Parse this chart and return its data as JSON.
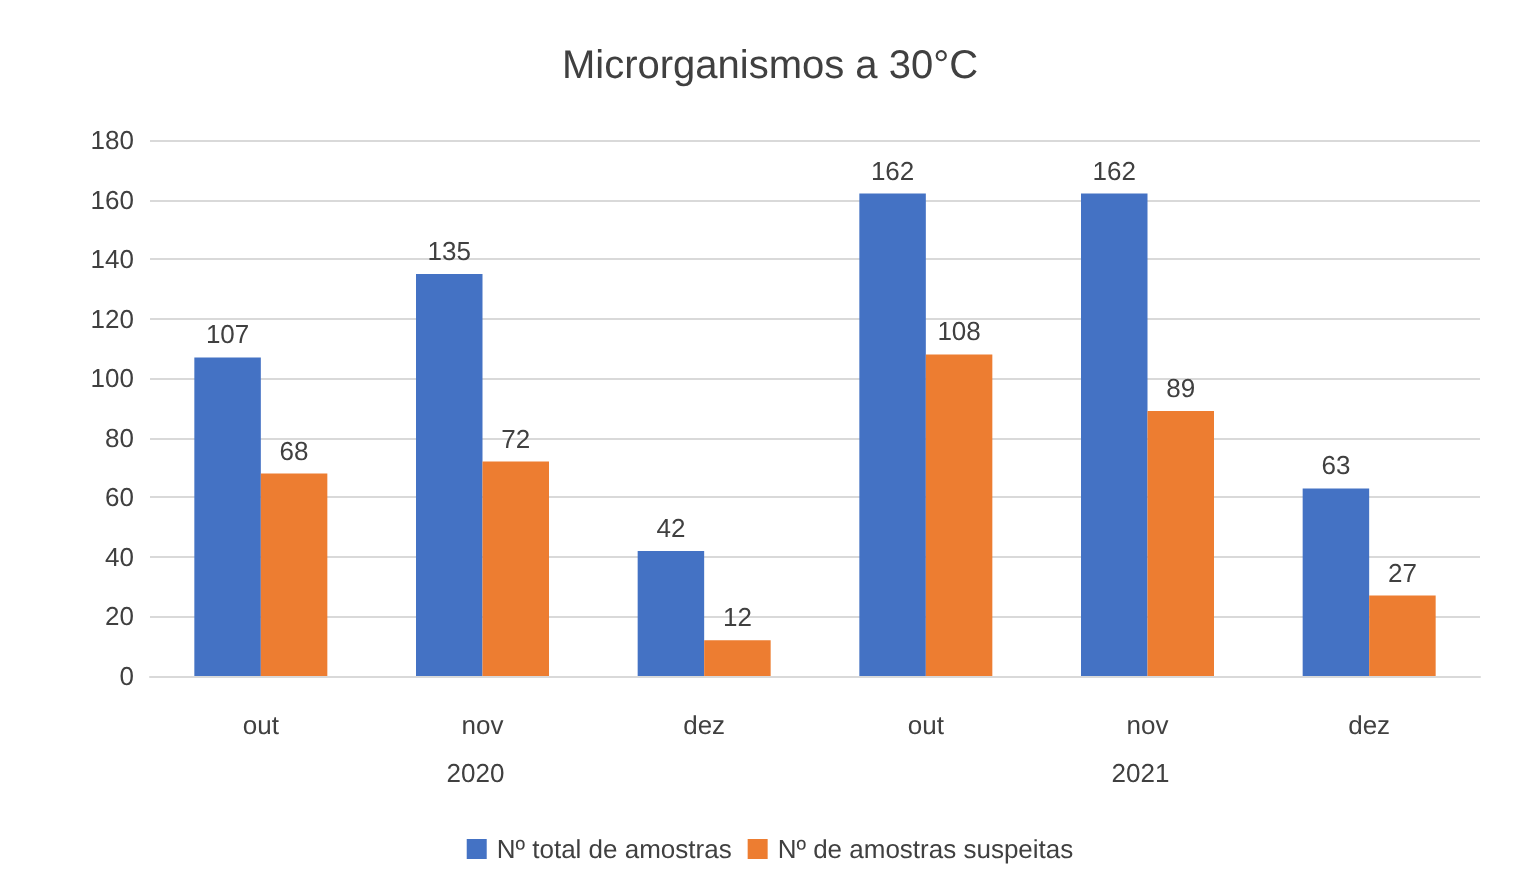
{
  "chart_data": {
    "type": "bar",
    "title": "Microrganismos a 30°C",
    "categories": [
      "out",
      "nov",
      "dez",
      "out",
      "nov",
      "dez"
    ],
    "series": [
      {
        "name": "Nº total de amostras",
        "color": "#4472c4",
        "values": [
          107,
          135,
          42,
          162,
          162,
          63
        ]
      },
      {
        "name": "Nº de amostras suspeitas",
        "color": "#ed7d31",
        "values": [
          68,
          72,
          12,
          108,
          89,
          27
        ]
      }
    ],
    "annotations": [
      "2020",
      "2021"
    ],
    "ylim": [
      0,
      180
    ],
    "yticks": [
      0,
      20,
      40,
      60,
      80,
      100,
      120,
      140,
      160,
      180
    ],
    "grid": "y",
    "legend": "bottom",
    "data_labels": true
  }
}
